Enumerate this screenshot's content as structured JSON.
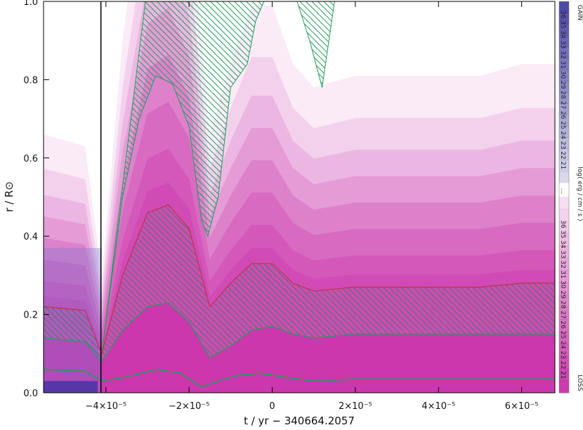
{
  "chart_data": {
    "type": "area",
    "title": "",
    "xlabel": "t / yr  −  340664.2057",
    "ylabel": "r / R⊙",
    "xlim": [
      -5.5e-05,
      6.8e-05
    ],
    "ylim": [
      0.0,
      1.0
    ],
    "x_ticks": [
      {
        "value": -4e-05,
        "label": "−4×10⁻⁵"
      },
      {
        "value": -2e-05,
        "label": "−2×10⁻⁵"
      },
      {
        "value": 0,
        "label": "0"
      },
      {
        "value": 2e-05,
        "label": "2×10⁻⁵"
      },
      {
        "value": 4e-05,
        "label": "4×10⁻⁵"
      },
      {
        "value": 6e-05,
        "label": "6×10⁻⁵"
      }
    ],
    "y_ticks": [
      {
        "value": 0.0,
        "label": "0.0"
      },
      {
        "value": 0.2,
        "label": "0.2"
      },
      {
        "value": 0.4,
        "label": "0.4"
      },
      {
        "value": 0.6,
        "label": "0.6"
      },
      {
        "value": 0.8,
        "label": "0.8"
      },
      {
        "value": 1.0,
        "label": "1.0"
      }
    ],
    "grid": false,
    "colorbar": {
      "title": "log( erg / cm / s )",
      "gain_label": "GAIN",
      "loss_label": "LOSS",
      "ellipsis": "...",
      "gain_ticks": [
        "21",
        "22",
        "23",
        "24",
        "25",
        "26",
        "27",
        "28",
        "29",
        "30",
        "31",
        "32",
        "33",
        "34",
        "35",
        "36"
      ],
      "loss_ticks": [
        "21",
        "22",
        "23",
        "24",
        "25",
        "26",
        "27",
        "28",
        "29",
        "30",
        "31",
        "32",
        "33",
        "34",
        "35",
        "36"
      ],
      "gain_color": "#3a35a0",
      "loss_color": "#c41aa0"
    },
    "series": [
      {
        "kind": "convective_boundary",
        "x": [
          -5.5e-05,
          -4.5e-05,
          -4.1e-05,
          -3.6e-05,
          -3e-05,
          -2.5e-05,
          -2e-05,
          -1.5e-05,
          -1e-05,
          -5e-06,
          0,
          5e-06,
          1e-05,
          2e-05,
          3e-05,
          4e-05,
          5e-05,
          6e-05,
          6.8e-05
        ],
        "y": [
          0.22,
          0.21,
          0.1,
          0.3,
          0.46,
          0.48,
          0.42,
          0.22,
          0.28,
          0.33,
          0.33,
          0.28,
          0.26,
          0.27,
          0.27,
          0.27,
          0.27,
          0.28,
          0.28
        ]
      },
      {
        "kind": "convective_boundary",
        "x": [
          -5.5e-05,
          -4.5e-05,
          -4.1e-05,
          -3.6e-05,
          -3e-05,
          -2.5e-05,
          -2e-05,
          -1.5e-05,
          -1e-05,
          -5e-06,
          0,
          5e-06,
          1e-05,
          2e-05,
          3e-05,
          4e-05,
          5e-05,
          6e-05,
          6.8e-05
        ],
        "y": [
          0.14,
          0.13,
          0.08,
          0.16,
          0.22,
          0.23,
          0.18,
          0.09,
          0.12,
          0.16,
          0.17,
          0.15,
          0.14,
          0.15,
          0.15,
          0.15,
          0.15,
          0.15,
          0.15
        ]
      },
      {
        "kind": "burning_shell",
        "x": [
          -5.5e-05,
          -4.5e-05,
          -4.1e-05,
          -3.5e-05,
          -2.8e-05,
          -2.2e-05,
          -1.7e-05,
          -1.3e-05,
          -8e-06,
          -3e-06,
          3e-06,
          1e-05,
          2e-05,
          3e-05,
          4e-05,
          5e-05,
          6e-05,
          6.8e-05
        ],
        "y": [
          0.06,
          0.055,
          0.03,
          0.04,
          0.06,
          0.05,
          0.015,
          0.03,
          0.045,
          0.05,
          0.04,
          0.03,
          0.035,
          0.035,
          0.035,
          0.035,
          0.035,
          0.035
        ]
      }
    ]
  }
}
